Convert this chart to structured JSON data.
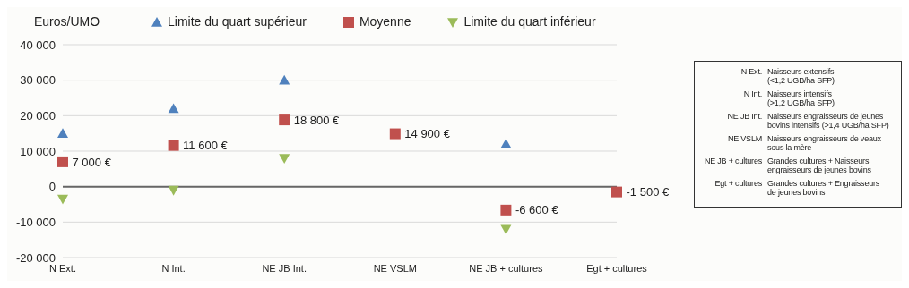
{
  "chart_data": {
    "type": "scatter",
    "ylabel": "Euros/UMO",
    "categories": [
      "N Ext.",
      "N Int.",
      "NE JB Int.",
      "NE VSLM",
      "NE JB + cultures",
      "Egt + cultures"
    ],
    "series": [
      {
        "name": "Limite du quart supérieur",
        "color": "#4f81bd",
        "marker": "triangle",
        "values": [
          15000,
          22000,
          30000,
          null,
          12000,
          null
        ]
      },
      {
        "name": "Moyenne",
        "color": "#c0504d",
        "marker": "square",
        "values": [
          7000,
          11600,
          18800,
          14900,
          -6600,
          -1500
        ],
        "value_labels": [
          "7 000 €",
          "11 600 €",
          "18 800 €",
          "14 900 €",
          "-6 600 €",
          "-1 500 €"
        ]
      },
      {
        "name": "Limite du quart inférieur",
        "color": "#9bbb59",
        "marker": "triangle-down",
        "values": [
          -3500,
          -1000,
          8000,
          null,
          -12000,
          null
        ]
      }
    ],
    "ylim": [
      -20000,
      40000
    ],
    "yticks": [
      {
        "value": -20000,
        "label": "-20 000"
      },
      {
        "value": -10000,
        "label": "-10 000"
      },
      {
        "value": 0,
        "label": "0"
      },
      {
        "value": 10000,
        "label": "10 000"
      },
      {
        "value": 20000,
        "label": "20 000"
      },
      {
        "value": 30000,
        "label": "30 000"
      },
      {
        "value": 40000,
        "label": "40 000"
      }
    ],
    "grid": "y",
    "legend": "top",
    "annotations": [
      "N Ext.",
      "Naisseurs extensifs\n(<1,2 UGB/ha SFP)",
      "N Int.",
      "Naisseurs intensifs\n(>1,2 UGB/ha SFP)",
      "NE JB Int.",
      "Naisseurs engraisseurs de jeunes\nbovins intensifs (>1,4 UGB/ha SFP)",
      "NE VSLM",
      "Naisseurs engraisseurs de veaux\nsous la mère",
      "NE JB + cultures",
      "Grandes cultures + Naisseurs\nengraisseurs de jeunes bovins",
      "Egt + cultures",
      "Grandes cultures + Engraisseurs\nde jeunes bovins"
    ]
  }
}
